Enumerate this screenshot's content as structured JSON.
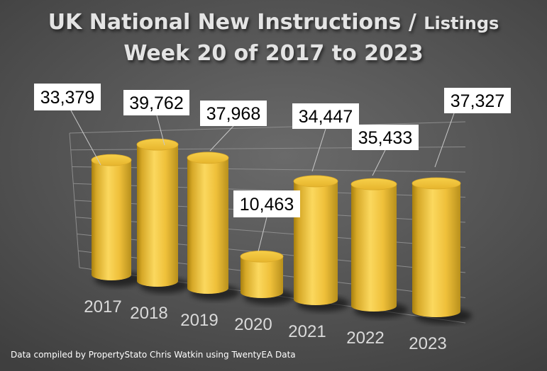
{
  "title": {
    "line1_main": "UK National New Instructions / ",
    "line1_small": "Listings",
    "line2": "Week 20 of 2017 to 2023"
  },
  "footnote": "Data compiled by PropertyStato Chris Watkin using TwentyEA Data",
  "colors": {
    "bar": "#f3c53a",
    "bar_dark": "#a77f0f",
    "label_bg": "#ffffff",
    "label_text": "#000000",
    "axis_text": "#dadada"
  },
  "chart_data": {
    "type": "bar",
    "categories": [
      "2017",
      "2018",
      "2019",
      "2020",
      "2021",
      "2022",
      "2023"
    ],
    "values": [
      33379,
      39762,
      37968,
      10463,
      34447,
      35433,
      37327
    ],
    "data_labels": [
      "33,379",
      "39,762",
      "37,968",
      "10,463",
      "34,447",
      "35,433",
      "37,327"
    ],
    "title": "UK National New Instructions / Listings Week 20 of 2017 to 2023",
    "xlabel": "",
    "ylabel": "",
    "ylim": [
      0,
      40000
    ],
    "grid": true,
    "style": "3d-cylinder"
  }
}
